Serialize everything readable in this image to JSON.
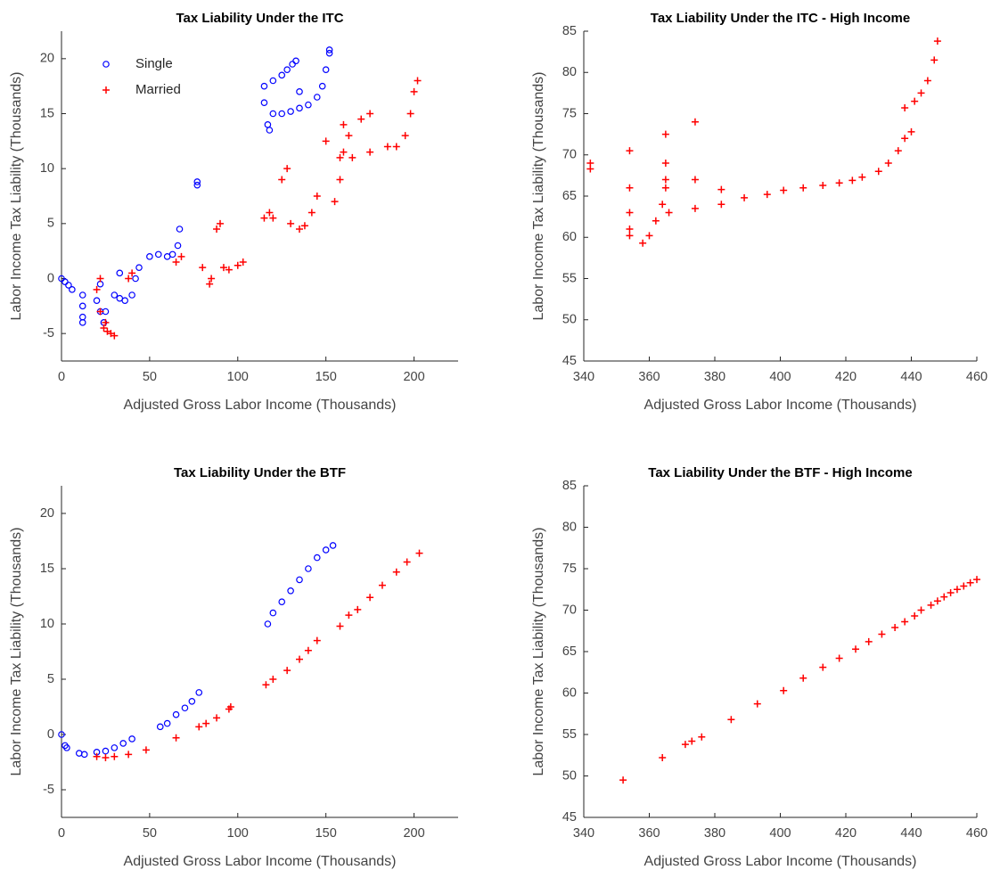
{
  "chart_data": [
    {
      "type": "scatter",
      "title": "Tax Liability Under the ITC",
      "x_label": "Adjusted Gross Labor Income (Thousands)",
      "y_label": "Labor Income Tax Liability (Thousands)",
      "xlim": [
        0,
        225
      ],
      "ylim": [
        -7.5,
        22.5
      ],
      "xticks": [
        0,
        50,
        100,
        150,
        200
      ],
      "yticks": [
        -5,
        0,
        5,
        10,
        15,
        20
      ],
      "legend": "northwest",
      "series": [
        {
          "name": "Single",
          "color": "#0000ff",
          "marker": "o",
          "x": [
            0,
            2,
            4,
            6,
            12,
            12,
            12,
            12,
            20,
            22,
            24,
            22,
            25,
            30,
            33,
            33,
            36,
            40,
            42,
            44,
            50,
            55,
            60,
            63,
            66,
            67,
            77,
            77,
            115,
            115,
            117,
            118,
            120,
            120,
            125,
            128,
            131,
            133,
            125,
            130,
            135,
            140,
            145,
            148,
            150,
            152,
            152,
            135
          ],
          "values": [
            0,
            -0.3,
            -0.6,
            -1,
            -1.5,
            -2.5,
            -3.5,
            -4,
            -2,
            -3,
            -4,
            -0.5,
            -3,
            -1.5,
            -1.8,
            0.5,
            -2,
            -1.5,
            0,
            1,
            2,
            2.2,
            2,
            2.2,
            3,
            4.5,
            8.5,
            8.8,
            17.5,
            16,
            14,
            13.5,
            15,
            18,
            18.5,
            19,
            19.5,
            19.8,
            15,
            15.2,
            15.5,
            15.8,
            16.5,
            17.5,
            19,
            20.5,
            20.8,
            17
          ]
        },
        {
          "name": "Married",
          "color": "#ff0000",
          "marker": "+",
          "x": [
            20,
            22,
            24,
            26,
            28,
            30,
            22,
            25,
            38,
            40,
            65,
            68,
            80,
            85,
            84,
            88,
            90,
            92,
            95,
            100,
            103,
            115,
            118,
            120,
            125,
            128,
            130,
            135,
            138,
            142,
            145,
            150,
            155,
            158,
            158,
            160,
            163,
            170,
            175,
            160,
            165,
            175,
            185,
            190,
            195,
            198,
            200,
            202
          ],
          "values": [
            -1,
            0,
            -4.5,
            -4.8,
            -5,
            -5.2,
            -3,
            -4,
            0,
            0.5,
            1.5,
            2,
            1,
            0,
            -0.5,
            4.5,
            5,
            1,
            0.8,
            1.2,
            1.5,
            5.5,
            6,
            5.5,
            9,
            10,
            5,
            4.5,
            4.8,
            6,
            7.5,
            12.5,
            7,
            9,
            11,
            11.5,
            13,
            14.5,
            15,
            14,
            11,
            11.5,
            12,
            12,
            13,
            15,
            17,
            18
          ]
        }
      ]
    },
    {
      "type": "scatter",
      "title": "Tax Liability Under the ITC - High Income",
      "x_label": "Adjusted Gross Labor Income (Thousands)",
      "y_label": "Labor Income Tax Liability (Thousands)",
      "xlim": [
        340,
        460
      ],
      "ylim": [
        45,
        85
      ],
      "xticks": [
        340,
        360,
        380,
        400,
        420,
        440,
        460
      ],
      "yticks": [
        45,
        50,
        55,
        60,
        65,
        70,
        75,
        80,
        85
      ],
      "series": [
        {
          "color": "#ff0000",
          "marker": "+",
          "x": [
            342,
            342,
            354,
            354,
            354,
            354,
            354,
            358,
            360,
            362,
            364,
            365,
            365,
            365,
            365,
            366,
            374,
            374,
            374,
            382,
            382,
            389,
            396,
            401,
            407,
            413,
            418,
            422,
            425,
            430,
            433,
            436,
            438,
            440,
            438,
            441,
            443,
            445,
            447,
            448
          ],
          "values": [
            68.3,
            69,
            70.5,
            66,
            63,
            61,
            60.2,
            59.3,
            60.2,
            62,
            64,
            66,
            72.5,
            69,
            67,
            63,
            74,
            67,
            63.5,
            64,
            65.8,
            64.8,
            65.2,
            65.7,
            66,
            66.3,
            66.6,
            66.9,
            67.3,
            68,
            69,
            70.5,
            72,
            72.8,
            75.7,
            76.5,
            77.5,
            79,
            81.5,
            83.8
          ]
        }
      ]
    },
    {
      "type": "scatter",
      "title": "Tax Liability Under the BTF",
      "x_label": "Adjusted Gross Labor Income (Thousands)",
      "y_label": "Labor Income Tax Liability (Thousands)",
      "xlim": [
        0,
        225
      ],
      "ylim": [
        -7.5,
        22.5
      ],
      "xticks": [
        0,
        50,
        100,
        150,
        200
      ],
      "yticks": [
        -5,
        0,
        5,
        10,
        15,
        20
      ],
      "series": [
        {
          "color": "#0000ff",
          "marker": "o",
          "x": [
            0,
            2,
            3,
            10,
            13,
            20,
            25,
            30,
            35,
            40,
            56,
            60,
            65,
            70,
            74,
            78,
            117,
            120,
            125,
            130,
            135,
            140,
            145,
            150,
            154
          ],
          "values": [
            0,
            -1,
            -1.2,
            -1.7,
            -1.8,
            -1.6,
            -1.5,
            -1.2,
            -0.8,
            -0.4,
            0.7,
            1,
            1.8,
            2.4,
            3,
            3.8,
            10,
            11,
            12,
            13,
            14,
            15,
            16,
            16.7,
            17.1
          ]
        },
        {
          "color": "#ff0000",
          "marker": "+",
          "x": [
            20,
            25,
            30,
            38,
            48,
            65,
            78,
            82,
            88,
            95,
            96,
            116,
            120,
            128,
            135,
            140,
            145,
            158,
            163,
            168,
            175,
            182,
            190,
            196,
            203
          ],
          "values": [
            -2,
            -2.1,
            -2,
            -1.8,
            -1.4,
            -0.3,
            0.7,
            1,
            1.5,
            2.3,
            2.5,
            4.5,
            5,
            5.8,
            6.8,
            7.6,
            8.5,
            9.8,
            10.8,
            11.3,
            12.4,
            13.5,
            14.7,
            15.6,
            16.4
          ]
        }
      ]
    },
    {
      "type": "scatter",
      "title": "Tax Liability Under the BTF - High Income",
      "x_label": "Adjusted Gross Labor Income (Thousands)",
      "y_label": "Labor Income Tax Liability (Thousands)",
      "xlim": [
        340,
        460
      ],
      "ylim": [
        45,
        85
      ],
      "xticks": [
        340,
        360,
        380,
        400,
        420,
        440,
        460
      ],
      "yticks": [
        45,
        50,
        55,
        60,
        65,
        70,
        75,
        80,
        85
      ],
      "series": [
        {
          "color": "#ff0000",
          "marker": "+",
          "x": [
            352,
            364,
            371,
            373,
            376,
            385,
            393,
            401,
            407,
            413,
            418,
            423,
            427,
            431,
            435,
            438,
            441,
            443,
            446,
            448,
            450,
            452,
            454,
            456,
            458,
            460
          ],
          "values": [
            49.5,
            52.2,
            53.8,
            54.2,
            54.7,
            56.8,
            58.7,
            60.3,
            61.8,
            63.1,
            64.2,
            65.3,
            66.2,
            67.1,
            67.9,
            68.6,
            69.3,
            70,
            70.6,
            71.1,
            71.6,
            72.1,
            72.5,
            72.9,
            73.3,
            73.7
          ]
        }
      ]
    }
  ]
}
